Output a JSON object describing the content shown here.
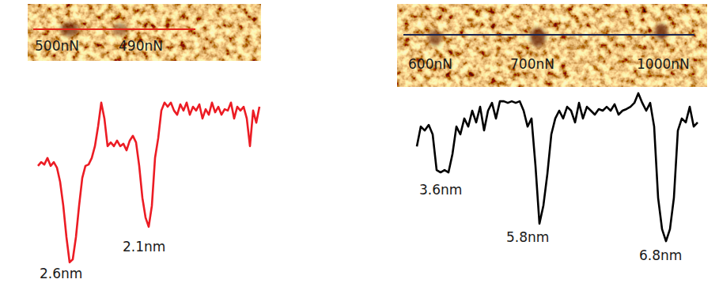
{
  "images": [
    {
      "labels": [
        "500nN",
        "490nN"
      ],
      "color": "#e3231b"
    },
    {
      "labels": [
        "600nN",
        "700nN",
        "1000nN"
      ],
      "color": "#1b2550"
    }
  ],
  "chart_data": [
    {
      "type": "line",
      "color": "#ec1c24",
      "ylim": [
        -2.8,
        2.0
      ],
      "tick_labels": false,
      "annotations": [
        "2.6nm",
        "2.1nm"
      ],
      "values": [
        0.06,
        0.17,
        0.1,
        0.29,
        0.06,
        0.17,
        0.01,
        -0.4,
        -1.09,
        -2.0,
        -2.73,
        -2.64,
        -2.0,
        -1.09,
        -0.29,
        0.06,
        0.1,
        0.29,
        0.63,
        1.2,
        1.89,
        1.43,
        0.63,
        0.74,
        0.63,
        0.79,
        0.63,
        0.7,
        0.51,
        0.79,
        0.93,
        0.74,
        0.06,
        -0.86,
        -1.43,
        -1.7,
        -1.09,
        0.29,
        0.86,
        1.66,
        1.89,
        1.77,
        1.89,
        1.66,
        1.54,
        1.84,
        1.66,
        1.89,
        1.54,
        1.77,
        1.66,
        1.84,
        1.43,
        1.7,
        1.54,
        1.89,
        1.61,
        1.77,
        1.54,
        1.7,
        1.66,
        1.89,
        1.43,
        1.77,
        1.66,
        1.77,
        1.43,
        0.63,
        1.66,
        1.31,
        1.77
      ]
    },
    {
      "type": "line",
      "color": "#000000",
      "ylim": [
        -5.2,
        1.5
      ],
      "tick_labels": false,
      "annotations": [
        "3.6nm",
        "5.8nm",
        "6.8nm"
      ],
      "values": [
        -0.91,
        -0.05,
        -0.22,
        0.02,
        -0.39,
        -1.94,
        -2.04,
        -1.94,
        -2.04,
        -1.25,
        -0.05,
        -0.39,
        0.3,
        -0.05,
        0.64,
        0.13,
        0.81,
        -0.22,
        0.64,
        0.98,
        0.3,
        1.05,
        1.05,
        0.98,
        1.05,
        0.98,
        1.05,
        0.64,
        -0.05,
        0.3,
        -1.76,
        -4.27,
        -3.48,
        -2.11,
        -0.39,
        0.3,
        0.64,
        0.3,
        0.81,
        0.64,
        0.13,
        0.98,
        0.3,
        0.81,
        0.64,
        0.47,
        0.71,
        0.64,
        0.81,
        0.64,
        0.92,
        0.47,
        0.64,
        0.71,
        0.81,
        0.98,
        1.4,
        0.98,
        0.64,
        0.98,
        -0.05,
        -3.14,
        -4.51,
        -5.03,
        -4.51,
        -3.14,
        -0.22,
        0.3,
        0.13,
        0.81,
        -0.05,
        0.13
      ]
    }
  ]
}
